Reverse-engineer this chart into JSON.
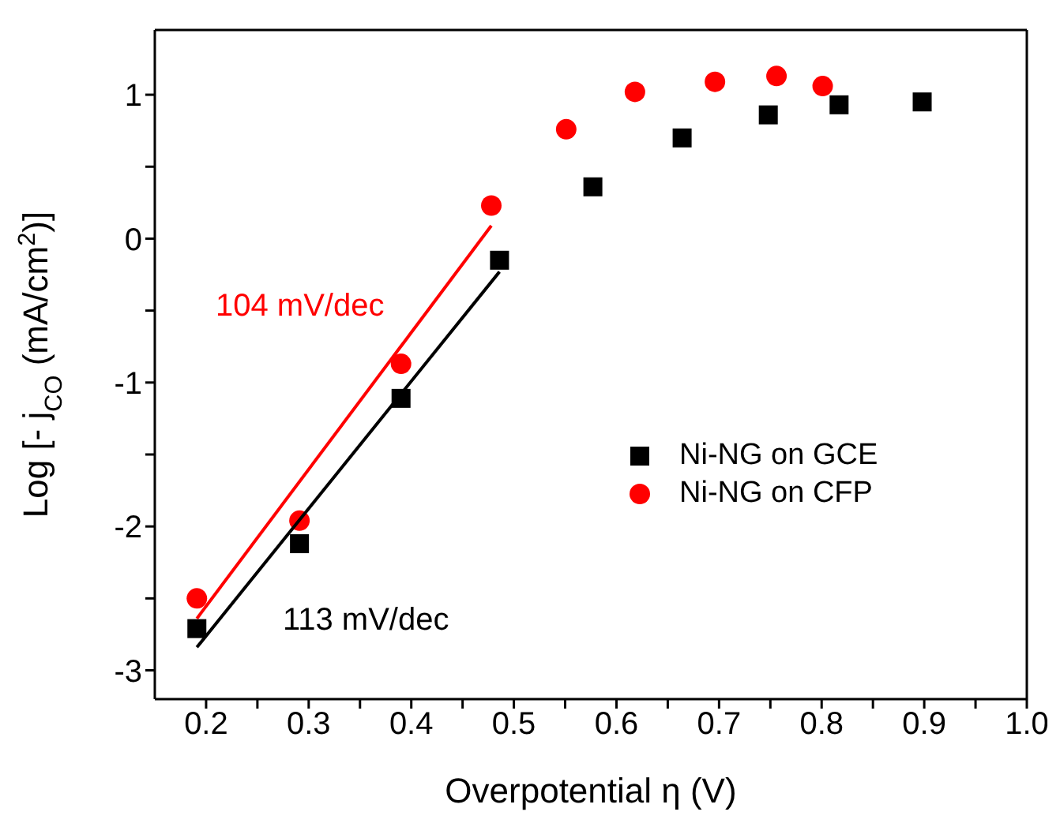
{
  "chart_data": {
    "type": "scatter",
    "xlabel": "Overpotential η (V)",
    "ylabel": "Log [- j$_{CO}$ (mA/cm$^{2}$)]",
    "xlim": [
      0.15,
      1.0
    ],
    "ylim": [
      -3.2,
      1.45
    ],
    "xticks": [
      0.2,
      {
        "value": 0.25,
        "label": null
      },
      0.3,
      {
        "value": 0.35,
        "label": null
      },
      0.4,
      {
        "value": 0.45,
        "label": null
      },
      0.5,
      {
        "value": 0.55,
        "label": null
      },
      0.6,
      {
        "value": 0.65,
        "label": null
      },
      0.7,
      {
        "value": 0.75,
        "label": null
      },
      0.8,
      {
        "value": 0.85,
        "label": null
      },
      0.9,
      {
        "value": 0.95,
        "label": null
      },
      "1.0"
    ],
    "yticks": [
      -3,
      {
        "value": -2.5,
        "label": null
      },
      -2,
      {
        "value": -1.5,
        "label": null
      },
      -1,
      {
        "value": -0.5,
        "label": null
      },
      0,
      {
        "value": 0.5,
        "label": null
      },
      1
    ],
    "legend": "right",
    "series": [
      {
        "name": "Ni-NG on GCE",
        "color": "#000000",
        "marker": "square",
        "x": [
          0.191,
          0.291,
          0.39,
          0.486,
          0.577,
          0.664,
          0.748,
          0.817,
          0.898
        ],
        "values": [
          -2.71,
          -2.12,
          -1.11,
          -0.15,
          0.36,
          0.7,
          0.86,
          0.93,
          0.95
        ]
      },
      {
        "name": "Ni-NG on CFP",
        "color": "#ff0000",
        "marker": "circle",
        "x": [
          0.191,
          0.291,
          0.39,
          0.478,
          0.551,
          0.618,
          0.696,
          0.756,
          0.801
        ],
        "values": [
          -2.5,
          -1.96,
          -0.87,
          0.23,
          0.76,
          1.02,
          1.09,
          1.13,
          1.06
        ]
      },
      {
        "type": "line",
        "color": "#ff0000",
        "marker": "none",
        "x": [
          0.191,
          0.478
        ],
        "values": [
          -2.64,
          0.09
        ]
      },
      {
        "type": "line",
        "color": "#000000",
        "marker": "none",
        "x": [
          0.191,
          0.486
        ],
        "values": [
          -2.84,
          -0.23
        ]
      }
    ],
    "annotations": [
      "104 mV/dec",
      "113 mV/dec"
    ]
  }
}
